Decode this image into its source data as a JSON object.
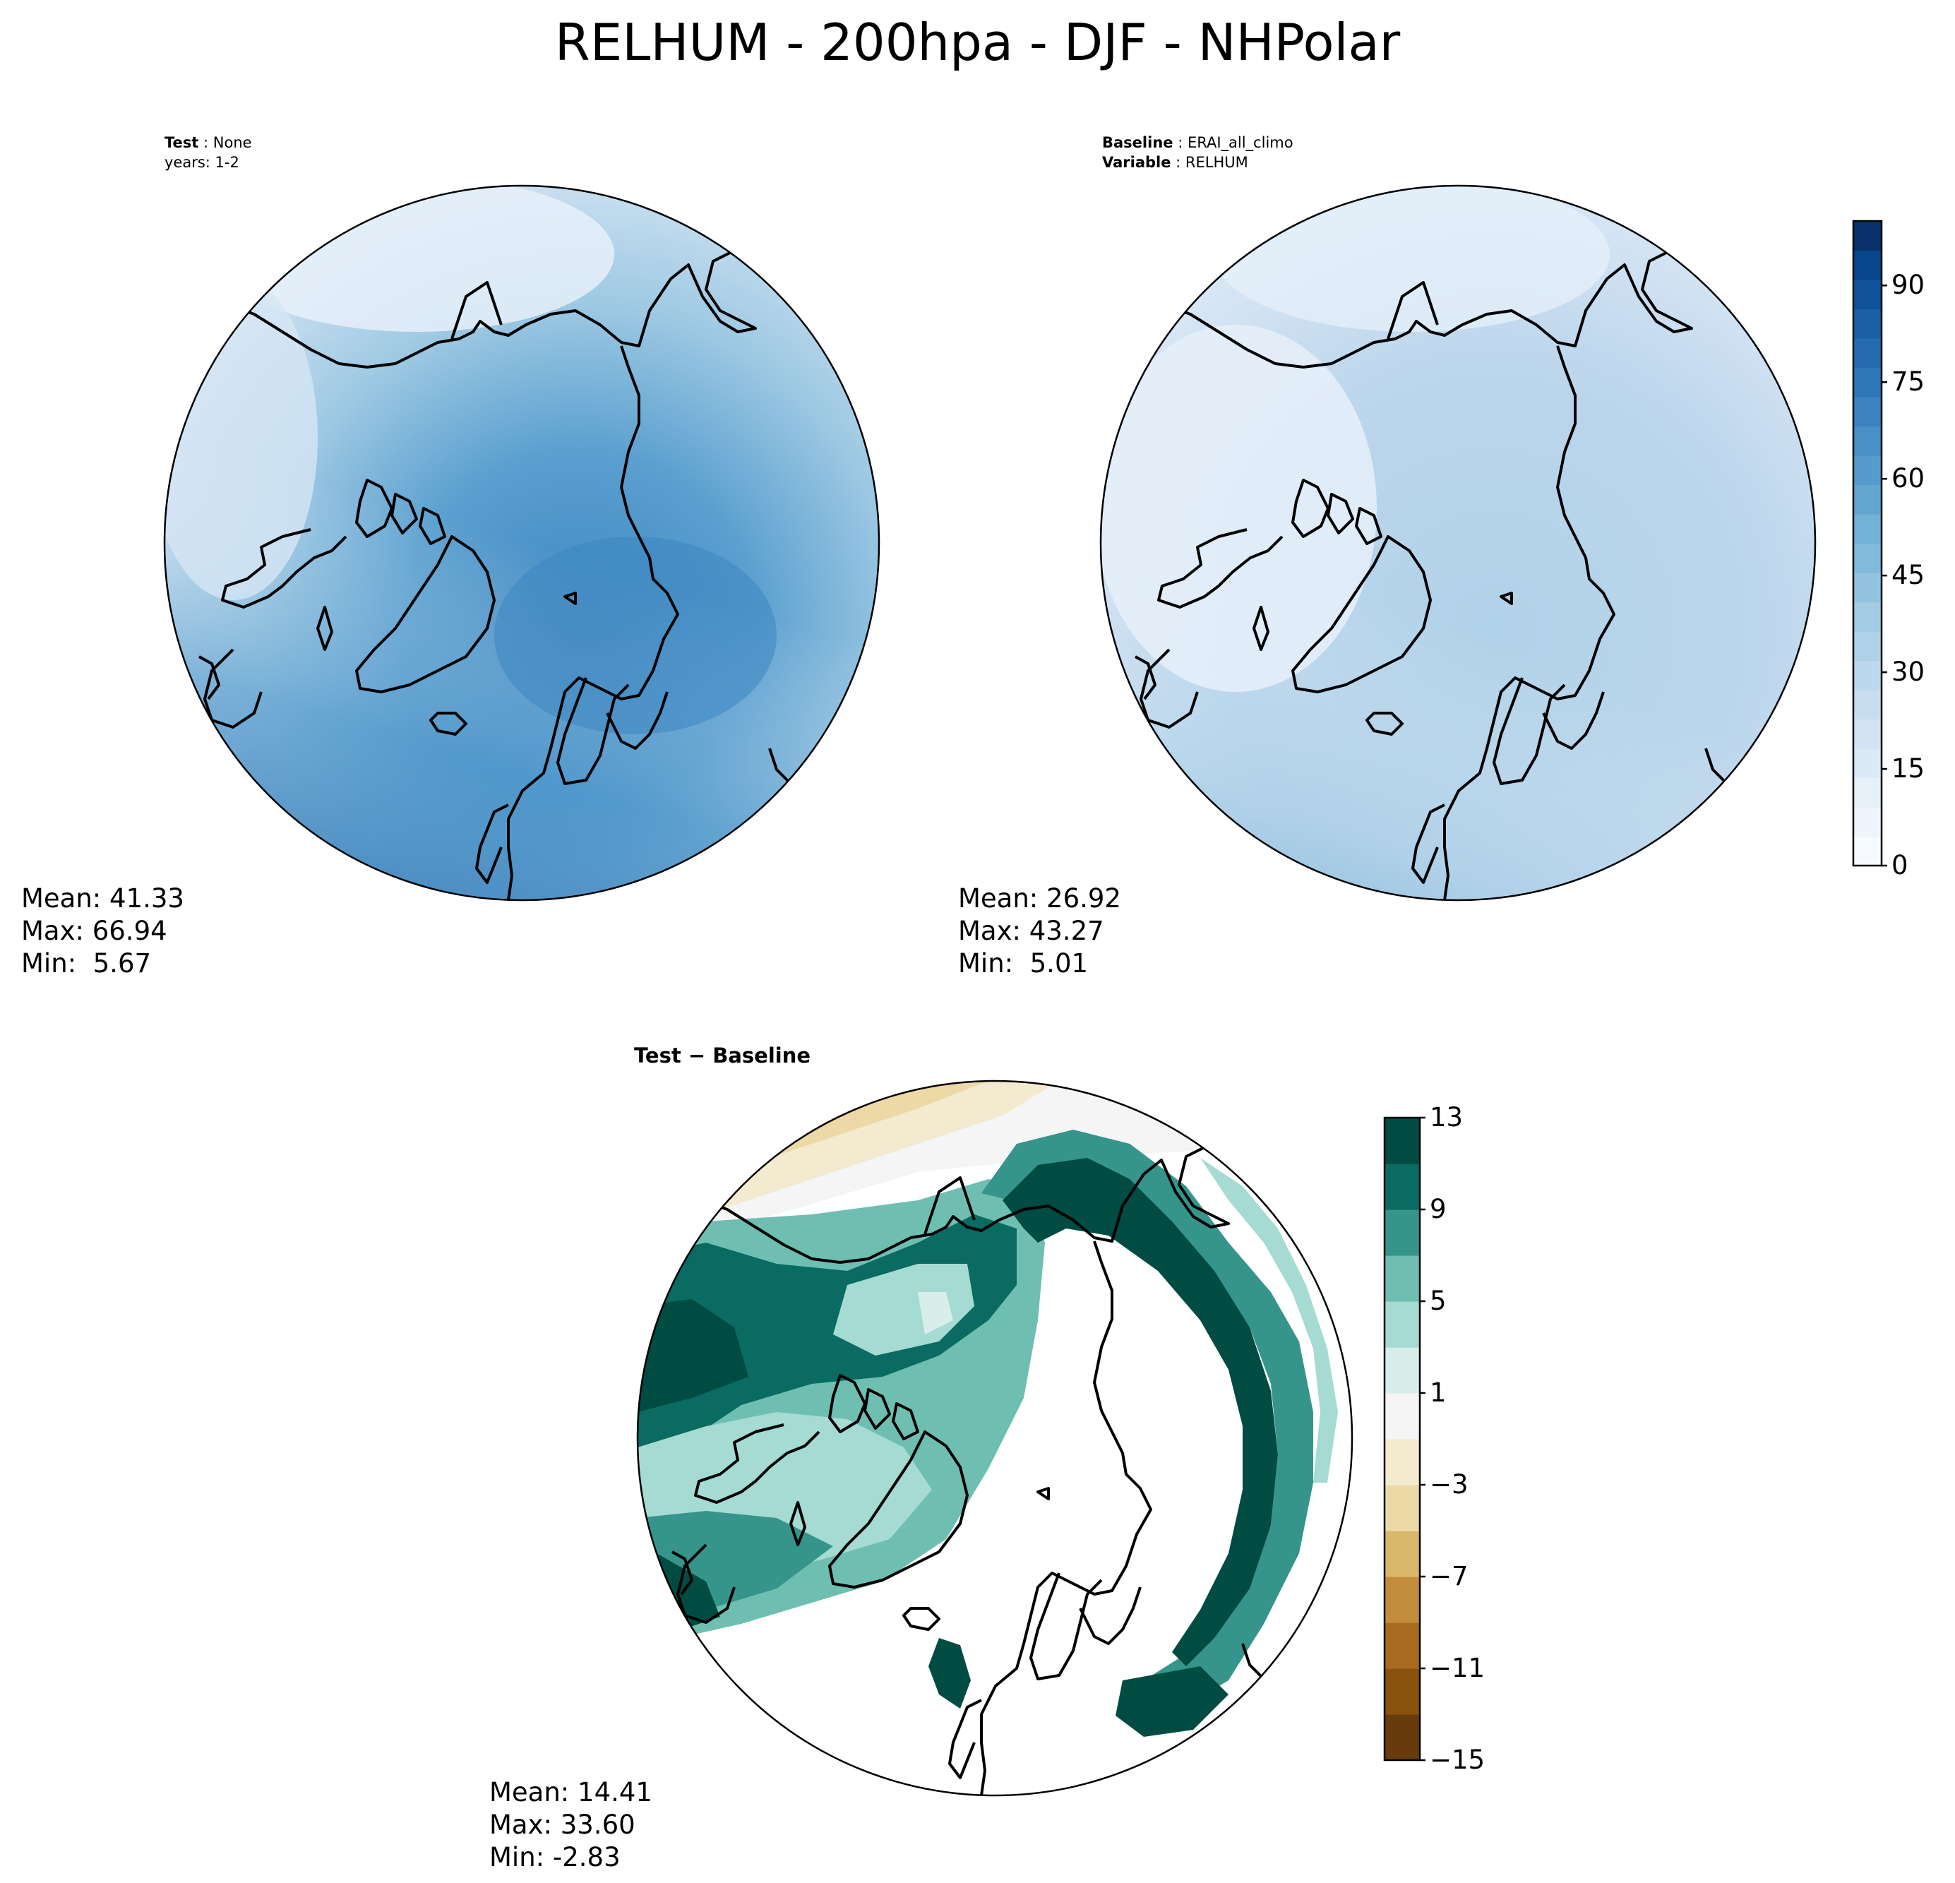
{
  "figure": {
    "title": "RELHUM - 200hpa - DJF - NHPolar"
  },
  "test_panel": {
    "label_bold": "Test",
    "label_value": "None",
    "years": "years: 1-2",
    "mean": "Mean: 41.33",
    "max": "Max: 66.94",
    "min": "Min:  5.67"
  },
  "baseline_panel": {
    "label_bold": "Baseline",
    "label_value": "ERAI_all_climo",
    "variable_bold": "Variable",
    "variable_value": "RELHUM",
    "mean": "Mean: 26.92",
    "max": "Max: 43.27",
    "min": "Min:  5.01"
  },
  "diff_panel": {
    "title": "Test − Baseline",
    "mean": "Mean: 14.41",
    "max": "Max: 33.60",
    "min": "Min: -2.83"
  },
  "colorbar_main": {
    "ticks": [
      "0",
      "15",
      "30",
      "45",
      "60",
      "75",
      "90"
    ],
    "tick_values": [
      0,
      15,
      30,
      45,
      60,
      75,
      90
    ],
    "range": [
      0,
      100
    ],
    "colors": [
      "#f7fbff",
      "#eef5fc",
      "#e6f0f9",
      "#dce9f6",
      "#d3e3f3",
      "#c9ddf0",
      "#bdd7ec",
      "#b0d2e8",
      "#a3cbe3",
      "#93c4df",
      "#82badb",
      "#72b2d7",
      "#63a7d1",
      "#559ccc",
      "#4890c5",
      "#3b84bf",
      "#2f78b8",
      "#246cae",
      "#1a60a4",
      "#10539a",
      "#08468b",
      "#08306b"
    ]
  },
  "colorbar_diff": {
    "ticks": [
      "13",
      "9",
      "5",
      "1",
      "−3",
      "−7",
      "−11",
      "−15"
    ],
    "tick_values": [
      13,
      9,
      5,
      1,
      -3,
      -7,
      -11,
      -15
    ],
    "range": [
      -15,
      13
    ],
    "colors": [
      "#673c0a",
      "#8a520e",
      "#a86a1e",
      "#c38c3d",
      "#d9b86b",
      "#ecd9a5",
      "#f4ead0",
      "#f5f5f5",
      "#d8eeea",
      "#a5dbd2",
      "#6ebfb2",
      "#35958a",
      "#0a6b62",
      "#014c42"
    ]
  }
}
